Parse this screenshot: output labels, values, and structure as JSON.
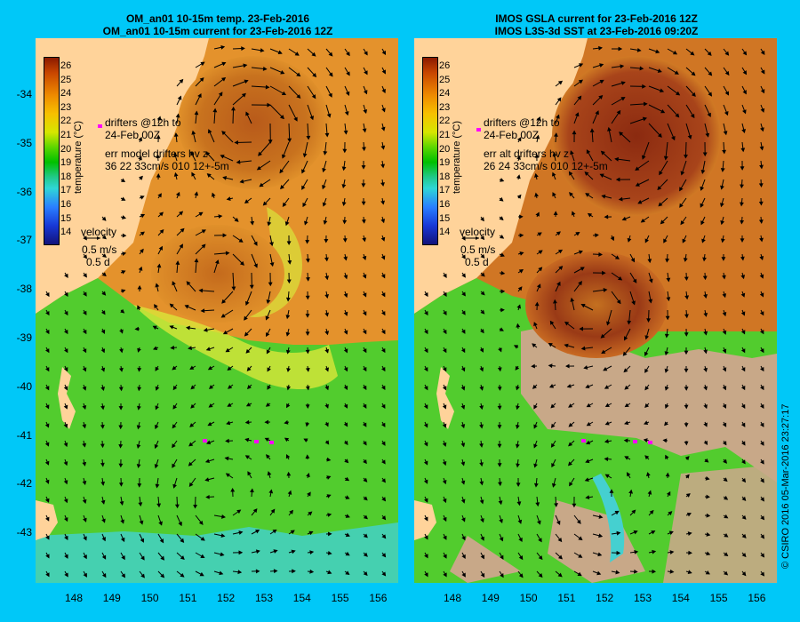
{
  "panels": [
    {
      "title_line1": "OM_an01 10-15m temp. 23-Feb-2016",
      "title_line2": "OM_an01 10-15m current for 23-Feb-2016 12Z",
      "drifters_line1": "drifters @12h to",
      "drifters_line2": "24-Feb 00Z",
      "err_line1": "err model drifters hv z",
      "err_line2": "36 22 33cm/s 010 12+-5m",
      "velocity_label": "velocity",
      "velocity_scale": "0.5 m/s",
      "velocity_time": "0.5 d"
    },
    {
      "title_line1": "IMOS GSLA current for 23-Feb-2016 12Z",
      "title_line2": "IMOS L3S-3d SST at 23-Feb-2016 09:20Z",
      "drifters_line1": "drifters @12h to",
      "drifters_line2": "24-Feb 00Z",
      "err_line1": "err alt drifters hv z",
      "err_line2": "26 24 33cm/s 010 12+-5m",
      "velocity_label": "velocity",
      "velocity_scale": "0.5 m/s",
      "velocity_time": "0.5 d"
    }
  ],
  "colorbar": {
    "title": "temperature (°C)",
    "ticks": [
      "26",
      "25",
      "24",
      "23",
      "22",
      "21",
      "20",
      "19",
      "18",
      "17",
      "16",
      "15",
      "14"
    ]
  },
  "lat_ticks": [
    "-34",
    "-35",
    "-36",
    "-37",
    "-38",
    "-39",
    "-40",
    "-41",
    "-42",
    "-43"
  ],
  "lon_ticks": [
    "148",
    "149",
    "150",
    "151",
    "152",
    "153",
    "154",
    "155",
    "156"
  ],
  "copyright": "© CSIRO 2016   05-Mar-2016 23:27:17",
  "colors": {
    "background": "#00c8f8",
    "land": "#ffd39a",
    "warm": "#e8902a",
    "cool": "#52cc2e",
    "cloud": "#c8a888",
    "drifter": "#ff00ff"
  }
}
